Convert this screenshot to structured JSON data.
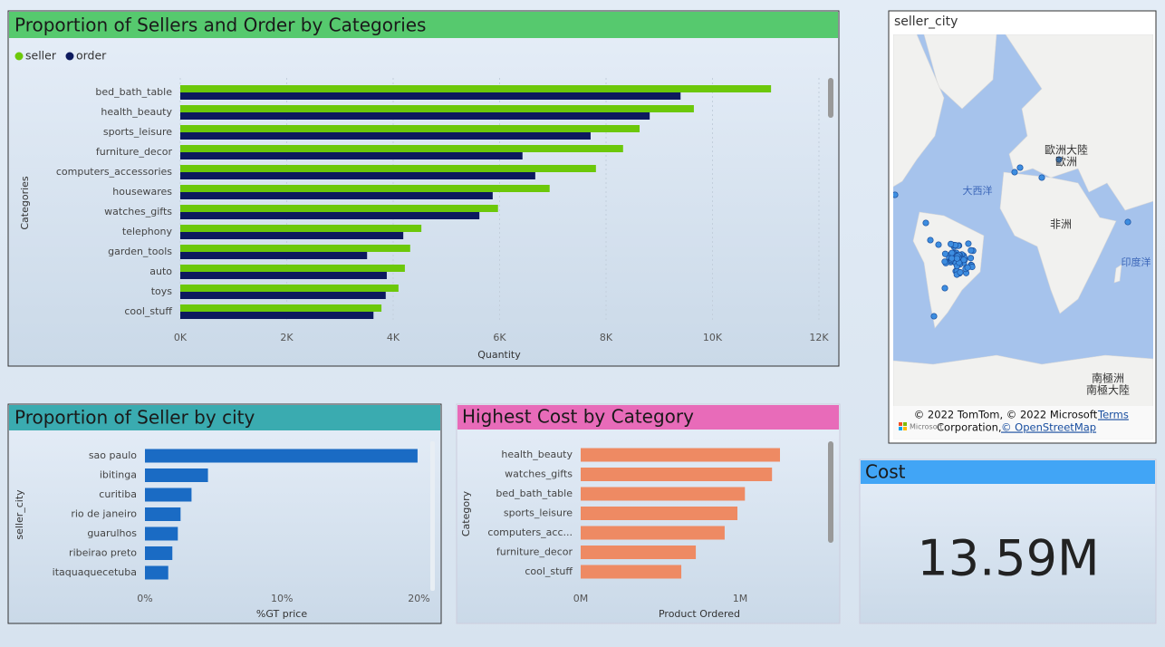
{
  "chart_data": [
    {
      "type": "bar",
      "orientation": "horizontal",
      "title": "Proportion of Sellers and Order by Categories",
      "categories": [
        "bed_bath_table",
        "health_beauty",
        "sports_leisure",
        "furniture_decor",
        "computers_accessories",
        "housewares",
        "watches_gifts",
        "telephony",
        "garden_tools",
        "auto",
        "toys",
        "cool_stuff"
      ],
      "series": [
        {
          "name": "seller",
          "color": "#6cc80a",
          "values": [
            11100,
            9650,
            8630,
            8320,
            7810,
            6940,
            5970,
            4530,
            4320,
            4220,
            4100,
            3780
          ]
        },
        {
          "name": "order",
          "color": "#0d1a5e",
          "values": [
            9400,
            8820,
            7710,
            6430,
            6670,
            5870,
            5620,
            4190,
            3510,
            3880,
            3860,
            3630
          ]
        }
      ],
      "xlim": [
        0,
        12000
      ],
      "xticks": [
        {
          "value": 0,
          "label": "0K"
        },
        {
          "value": 2000,
          "label": "2K"
        },
        {
          "value": 4000,
          "label": "4K"
        },
        {
          "value": 6000,
          "label": "6K"
        },
        {
          "value": 8000,
          "label": "8K"
        },
        {
          "value": 10000,
          "label": "10K"
        },
        {
          "value": 12000,
          "label": "12K"
        }
      ],
      "x_label": "Quantity",
      "y_label": "Categories",
      "grid": true,
      "legend": "top-left"
    },
    {
      "type": "bar",
      "orientation": "horizontal",
      "title": "Proportion of Seller by city",
      "categories": [
        "sao paulo",
        "ibitinga",
        "curitiba",
        "rio de janeiro",
        "guarulhos",
        "ribeirao preto",
        "itaquaquecetuba"
      ],
      "values": [
        19.9,
        4.6,
        3.4,
        2.6,
        2.4,
        2.0,
        1.7
      ],
      "color": "#1a6bc4",
      "xlim": [
        0,
        20.5
      ],
      "xticks": [
        {
          "value": 0,
          "label": "0%"
        },
        {
          "value": 10,
          "label": "10%"
        },
        {
          "value": 20,
          "label": "20%"
        }
      ],
      "x_label": "%GT price",
      "y_label": "seller_city",
      "grid": false
    },
    {
      "type": "bar",
      "orientation": "horizontal",
      "title": "Highest Cost by Category",
      "categories": [
        "health_beauty",
        "watches_gifts",
        "bed_bath_table",
        "sports_leisure",
        "computers_acc...",
        "furniture_decor",
        "cool_stuff"
      ],
      "values": [
        1250000,
        1200000,
        1030000,
        983000,
        903000,
        722000,
        631000
      ],
      "color": "#ee8a63",
      "xlim": [
        0,
        1500000
      ],
      "xticks": [
        {
          "value": 0,
          "label": "0M"
        },
        {
          "value": 1000000,
          "label": "1M"
        }
      ],
      "x_label": "Product Ordered",
      "y_label": "Category",
      "grid": false
    }
  ],
  "map": {
    "title": "seller_city",
    "labels": [
      "歐洲大陸",
      "歐洲",
      "大西洋",
      "非洲",
      "印度洋",
      "南極洲",
      "南極大陸"
    ],
    "attribution": [
      "© 2022 TomTom, © 2022 Microsoft",
      "Terms",
      "Corporation,",
      "© OpenStreetMap"
    ],
    "logo": "Microsoft"
  },
  "card": {
    "title": "Cost",
    "value": "13.59M"
  }
}
